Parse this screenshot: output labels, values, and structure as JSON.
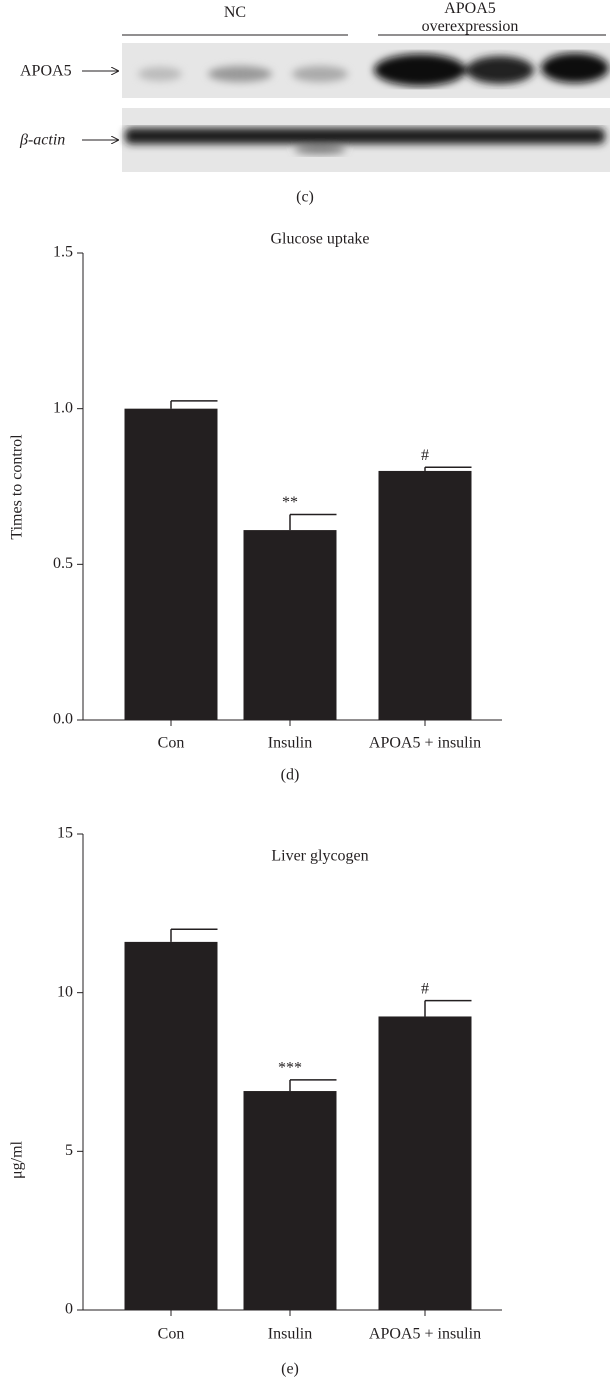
{
  "blot": {
    "groups": [
      "NC",
      "APOA5 overexpression"
    ],
    "rows": [
      "APOA5",
      "β-actin"
    ],
    "caption": "(c)"
  },
  "chart_data": [
    {
      "type": "bar",
      "title": "Glucose uptake",
      "ylabel": "Times to control",
      "categories": [
        "Con",
        "Insulin",
        "APOA5 + insulin"
      ],
      "values": [
        1.0,
        0.61,
        0.8
      ],
      "errors": [
        0.025,
        0.05,
        0.012
      ],
      "annotations": [
        null,
        "**",
        "#"
      ],
      "color": "#231f20",
      "ylim": [
        0,
        1.5
      ],
      "yticks": [
        {
          "value": 0,
          "label": "0.0"
        },
        0.5,
        {
          "value": 1,
          "label": "1.0"
        },
        1.5
      ],
      "caption": "(d)"
    },
    {
      "type": "bar",
      "title": "Liver glycogen",
      "ylabel": "μg/ml",
      "categories": [
        "Con",
        "Insulin",
        "APOA5 + insulin"
      ],
      "values": [
        11.6,
        6.9,
        9.25
      ],
      "errors": [
        0.4,
        0.35,
        0.5
      ],
      "annotations": [
        null,
        "***",
        "#"
      ],
      "color": "#231f20",
      "ylim": [
        0,
        15
      ],
      "yticks": [
        0,
        5,
        10,
        15
      ],
      "caption": "(e)"
    }
  ]
}
